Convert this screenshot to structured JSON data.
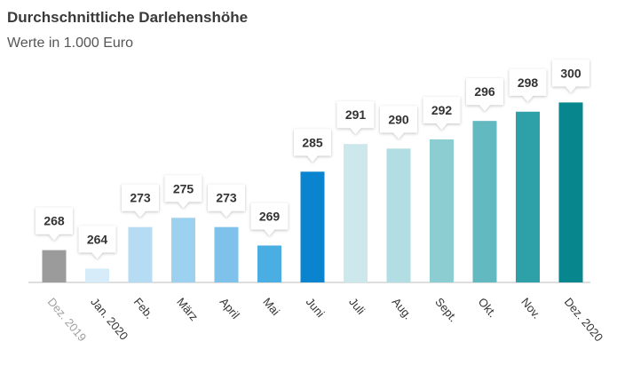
{
  "header": {
    "title": "Durchschnittliche Darlehenshöhe",
    "subtitle": "Werte in 1.000 Euro"
  },
  "chart_data": {
    "type": "bar",
    "title": "Durchschnittliche Darlehenshöhe",
    "subtitle": "Werte in 1.000 Euro",
    "categories": [
      "Dez. 2019",
      "Jan. 2020",
      "Feb.",
      "März",
      "April",
      "Mai",
      "Juni",
      "Juli",
      "Aug.",
      "Sept.",
      "Okt.",
      "Nov.",
      "Dez. 2020"
    ],
    "values": [
      268,
      264,
      273,
      275,
      273,
      269,
      285,
      291,
      290,
      292,
      296,
      298,
      300
    ],
    "colors": [
      "#9b9b9b",
      "#d6ecf8",
      "#b5dcf3",
      "#9dd1f0",
      "#7ec2ec",
      "#4aaee3",
      "#0b84cf",
      "#cde8ec",
      "#b2dde2",
      "#8ccdd2",
      "#62b9bf",
      "#2da1a7",
      "#07878d"
    ],
    "tick_colors": [
      "#a0a0a0",
      "#333333",
      "#333333",
      "#333333",
      "#333333",
      "#333333",
      "#333333",
      "#333333",
      "#333333",
      "#333333",
      "#333333",
      "#333333",
      "#333333"
    ],
    "ylim": [
      261,
      302
    ],
    "grid": false,
    "data_labels": true
  }
}
